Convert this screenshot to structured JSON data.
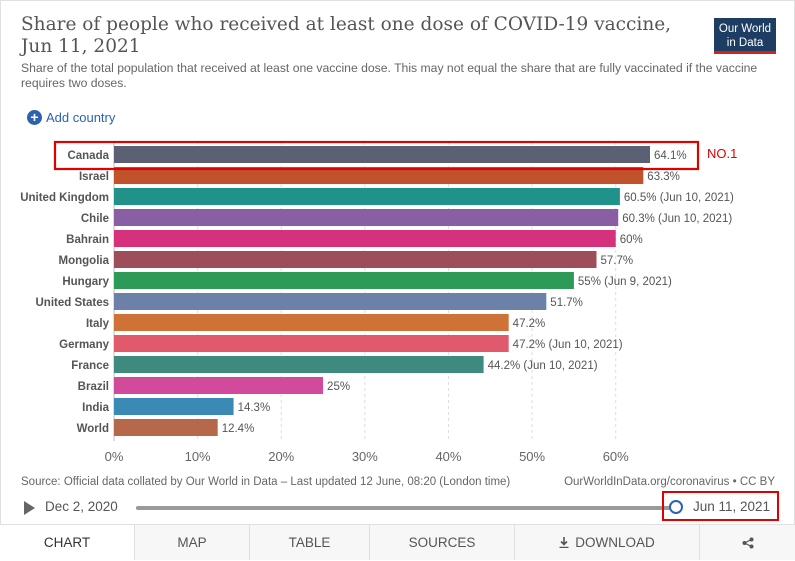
{
  "header": {
    "title": "Share of people who received at least one dose of COVID-19 vaccine, Jun 11, 2021",
    "subtitle": "Share of the total population that received at least one vaccine dose. This may not equal the share that are fully vaccinated if the vaccine requires two doses.",
    "logo_line1": "Our World",
    "logo_line2": "in Data",
    "add_country_label": "Add country"
  },
  "annotation": {
    "label": "NO.1",
    "color": "#e10000"
  },
  "chart_data": {
    "type": "bar",
    "orientation": "horizontal",
    "categories": [
      "Canada",
      "Israel",
      "United Kingdom",
      "Chile",
      "Bahrain",
      "Mongolia",
      "Hungary",
      "United States",
      "Italy",
      "Germany",
      "France",
      "Brazil",
      "India",
      "World"
    ],
    "values": [
      64.1,
      63.3,
      60.5,
      60.3,
      60,
      57.7,
      55,
      51.7,
      47.2,
      47.2,
      44.2,
      25,
      14.3,
      12.4
    ],
    "value_labels": [
      "64.1%",
      "63.3%",
      "60.5% (Jun 10, 2021)",
      "60.3% (Jun 10, 2021)",
      "60%",
      "57.7%",
      "55% (Jun 9, 2021)",
      "51.7%",
      "47.2%",
      "47.2% (Jun 10, 2021)",
      "44.2% (Jun 10, 2021)",
      "25%",
      "14.3%",
      "12.4%"
    ],
    "colors": [
      "#5b6075",
      "#c0532b",
      "#20928a",
      "#8a5ea3",
      "#d6317d",
      "#9e4e5a",
      "#2e9a58",
      "#6c80a8",
      "#cf7238",
      "#e05a6c",
      "#3e8a7e",
      "#d24a9c",
      "#3a8ab5",
      "#b5694a"
    ],
    "xlim": [
      0,
      64.1
    ],
    "xticks": [
      0,
      10,
      20,
      30,
      40,
      50,
      60
    ],
    "xtick_labels": [
      "0%",
      "10%",
      "20%",
      "30%",
      "40%",
      "50%",
      "60%"
    ],
    "grid": true,
    "title": "Share of people who received at least one dose of COVID-19 vaccine, Jun 11, 2021"
  },
  "footer": {
    "source": "Source: Official data collated by Our World in Data – Last updated 12 June, 08:20 (London time)",
    "credit": "OurWorldInData.org/coronavirus • CC BY"
  },
  "timeline": {
    "start_date": "Dec 2, 2020",
    "end_date": "Jun 11, 2021",
    "progress": 1.0
  },
  "tabs": [
    {
      "label": "CHART",
      "active": true
    },
    {
      "label": "MAP",
      "active": false
    },
    {
      "label": "TABLE",
      "active": false
    },
    {
      "label": "SOURCES",
      "active": false
    },
    {
      "label": "DOWNLOAD",
      "active": false
    }
  ],
  "icons": {
    "play": "play-icon",
    "add": "plus-circle-icon",
    "download": "download-icon",
    "share": "share-icon"
  }
}
